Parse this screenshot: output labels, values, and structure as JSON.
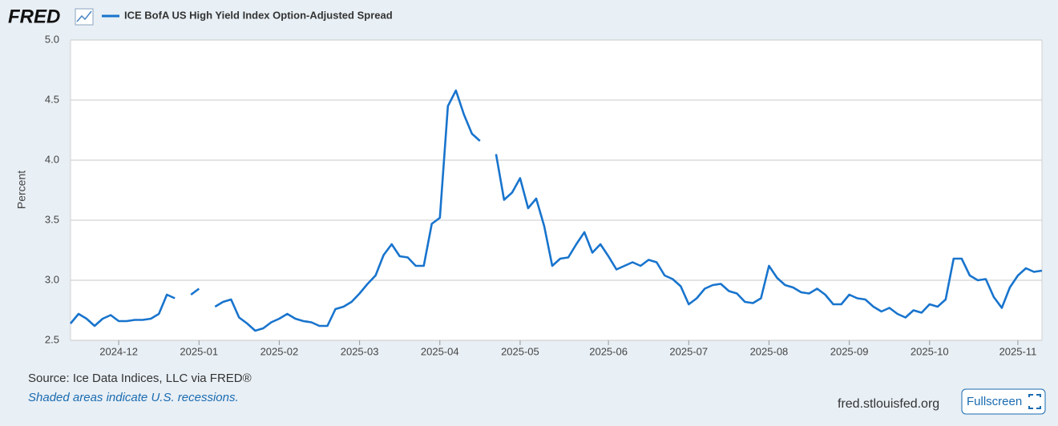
{
  "logo": "FRED",
  "chart_data": {
    "type": "line",
    "y_label": "Percent",
    "categories": [
      null,
      null,
      null,
      null,
      null,
      null,
      "2024-12",
      null,
      null,
      null,
      null,
      null,
      null,
      null,
      null,
      null,
      "2025-01",
      null,
      null,
      null,
      null,
      null,
      null,
      null,
      null,
      null,
      "2025-02",
      null,
      null,
      null,
      null,
      null,
      null,
      null,
      null,
      null,
      "2025-03",
      null,
      null,
      null,
      null,
      null,
      null,
      null,
      null,
      null,
      "2025-04",
      null,
      null,
      null,
      null,
      null,
      null,
      null,
      null,
      null,
      "2025-05",
      null,
      null,
      null,
      null,
      null,
      null,
      null,
      null,
      null,
      null,
      "2025-06",
      null,
      null,
      null,
      null,
      null,
      null,
      null,
      null,
      null,
      "2025-07",
      null,
      null,
      null,
      null,
      null,
      null,
      null,
      null,
      null,
      "2025-08",
      null,
      null,
      null,
      null,
      null,
      null,
      null,
      null,
      null,
      "2025-09",
      null,
      null,
      null,
      null,
      null,
      null,
      null,
      null,
      null,
      "2025-10",
      null,
      null,
      null,
      null,
      null,
      null,
      null,
      null,
      null,
      null,
      "2025-11",
      null,
      null,
      null
    ],
    "series": [
      {
        "name": "ICE BofA US High Yield Index Option-Adjusted Spread",
        "color": "#1874cd",
        "values": [
          2.64,
          2.72,
          2.68,
          2.62,
          2.68,
          2.71,
          2.66,
          2.66,
          2.67,
          2.67,
          2.68,
          2.72,
          2.88,
          2.85,
          null,
          2.88,
          2.93,
          null,
          2.78,
          2.82,
          2.84,
          2.69,
          2.64,
          2.58,
          2.6,
          2.65,
          2.68,
          2.72,
          2.68,
          2.66,
          2.65,
          2.62,
          2.62,
          2.76,
          2.78,
          2.82,
          2.89,
          2.97,
          3.04,
          3.21,
          3.3,
          3.2,
          3.19,
          3.12,
          3.12,
          3.47,
          3.52,
          4.45,
          4.58,
          4.38,
          4.22,
          4.16,
          null,
          4.05,
          3.67,
          3.73,
          3.85,
          3.6,
          3.68,
          3.45,
          3.12,
          3.18,
          3.19,
          3.3,
          3.4,
          3.23,
          3.3,
          3.2,
          3.09,
          3.12,
          3.15,
          3.12,
          3.17,
          3.15,
          3.04,
          3.01,
          2.95,
          2.8,
          2.85,
          2.93,
          2.96,
          2.97,
          2.91,
          2.89,
          2.82,
          2.81,
          2.85,
          3.12,
          3.02,
          2.96,
          2.94,
          2.9,
          2.89,
          2.93,
          2.88,
          2.8,
          2.8,
          2.88,
          2.85,
          2.84,
          2.78,
          2.74,
          2.77,
          2.72,
          2.69,
          2.75,
          2.73,
          2.8,
          2.78,
          2.84,
          3.18,
          3.18,
          3.04,
          3.0,
          3.01,
          2.86,
          2.77,
          2.94,
          3.04,
          3.1,
          3.07,
          3.08
        ]
      }
    ],
    "ylim": [
      2.5,
      5.0
    ],
    "yticks": [
      2.5,
      {
        "value": 3,
        "label": "3.0"
      },
      3.5,
      {
        "value": 4,
        "label": "4.0"
      },
      4.5,
      {
        "value": 5,
        "label": "5.0"
      }
    ],
    "grid": true
  },
  "footer": {
    "source": "Source: Ice Data Indices, LLC via FRED®",
    "note": "Shaded areas indicate U.S. recessions.",
    "site": "fred.stlouisfed.org",
    "button": "Fullscreen"
  }
}
